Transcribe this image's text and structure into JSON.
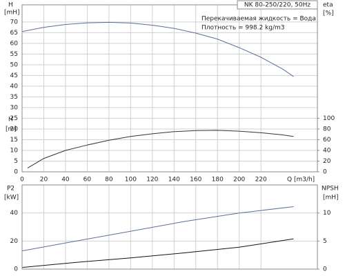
{
  "chart_data": [
    {
      "type": "line",
      "title": "NK 80-250/220, 50Hz",
      "annotations": [
        "Перекачиваемая жидкость = Вода",
        "Плотность = 998.2 kg/m3"
      ],
      "ylabel": "H",
      "yunit": "[mH]",
      "ylabel_lower": "H",
      "yunit_lower": "[m]",
      "y2label": "eta",
      "y2unit": "[%]",
      "xlabel": "Q [m3/h]",
      "xlim": [
        0,
        272
      ],
      "xticks": [
        0,
        20,
        40,
        60,
        80,
        100,
        120,
        140,
        160,
        180,
        200,
        220
      ],
      "ylim": [
        0,
        78
      ],
      "yticks": [
        0,
        5,
        10,
        15,
        20,
        25,
        30,
        35,
        40,
        45,
        50,
        55,
        60,
        65,
        70
      ],
      "y2lim": [
        0,
        312
      ],
      "y2ticks": [
        0,
        20,
        40,
        60,
        80,
        100
      ],
      "grid": true,
      "series": [
        {
          "name": "H",
          "color": "#5a6e9a",
          "x": [
            0,
            20,
            40,
            60,
            80,
            100,
            120,
            140,
            160,
            180,
            200,
            220,
            240,
            250
          ],
          "values": [
            65.5,
            67.5,
            68.8,
            69.6,
            69.8,
            69.5,
            68.5,
            67,
            64.8,
            62,
            58,
            53.5,
            48,
            44.5
          ]
        },
        {
          "name": "eta",
          "color": "#333333",
          "axis": "y2",
          "x": [
            5,
            20,
            40,
            60,
            80,
            100,
            120,
            140,
            160,
            180,
            200,
            220,
            240,
            250
          ],
          "values": [
            7,
            25,
            40,
            50,
            59,
            66,
            71,
            75,
            77,
            77.5,
            76,
            73,
            69,
            66
          ]
        }
      ]
    },
    {
      "type": "line",
      "ylabel": "P2",
      "yunit": "[kW]",
      "y2label": "NPSH",
      "y2unit": "[mH]",
      "xlim": [
        0,
        272
      ],
      "xticks": [
        0,
        20,
        40,
        60,
        80,
        100,
        120,
        140,
        160,
        180,
        200,
        220
      ],
      "ylim": [
        0,
        60
      ],
      "yticks": [
        0,
        20,
        40
      ],
      "y2lim": [
        0,
        15
      ],
      "y2ticks": [
        0,
        5,
        10
      ],
      "grid": true,
      "series": [
        {
          "name": "P2",
          "color": "#5a6e9a",
          "x": [
            0,
            50,
            100,
            150,
            200,
            250
          ],
          "values": [
            13,
            20,
            27,
            34,
            40,
            44.5
          ]
        },
        {
          "name": "NPSH",
          "color": "#111111",
          "axis": "y2",
          "x": [
            0,
            50,
            100,
            150,
            200,
            250
          ],
          "values": [
            0.3,
            1.2,
            2.0,
            2.9,
            3.9,
            5.4
          ]
        }
      ]
    }
  ]
}
